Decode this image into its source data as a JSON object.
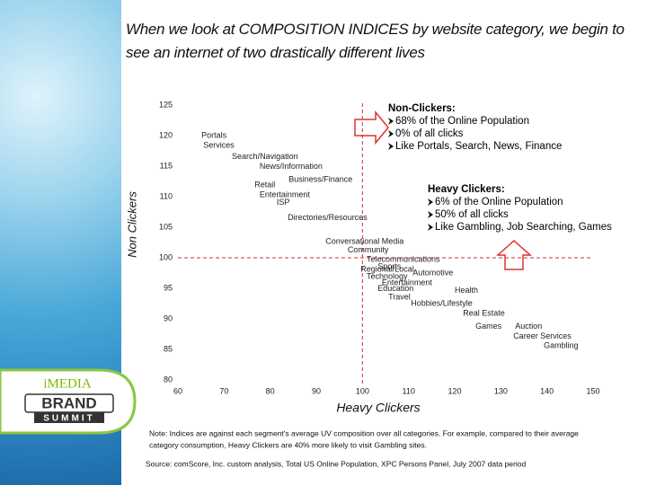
{
  "title": "When we look at COMPOSITION INDICES by website category, we begin to see an internet of two drastically different lives",
  "chart_data": {
    "type": "scatter",
    "x_label": "Heavy Clickers",
    "y_label": "Non Clickers",
    "xlim": [
      60,
      150
    ],
    "xticks": [
      60,
      70,
      80,
      90,
      100,
      110,
      120,
      130,
      140,
      150
    ],
    "ylim": [
      80,
      125
    ],
    "yticks": [
      80,
      85,
      90,
      95,
      100,
      105,
      110,
      115,
      120,
      125
    ],
    "reference_lines": {
      "x": 100,
      "y": 100
    },
    "labels": [
      "Portals",
      "Services",
      "Search/Navigation",
      "News/Information",
      "Business/Finance",
      "Retail",
      "Entertainment",
      "ISP",
      "Directories/Resources",
      "Conversational Media",
      "Community",
      "Telecommunications",
      "Sports",
      "Regional/Local",
      "Automotive",
      "Technology",
      "Entertainment",
      "Education",
      "Health",
      "Travel",
      "Hobbies/Lifestyle",
      "Real Estate",
      "Games",
      "Auction",
      "Career Services",
      "Gambling"
    ],
    "x": [
      65.1,
      65.5,
      71.7,
      77.7,
      84.0,
      76.6,
      77.7,
      81.4,
      83.8,
      92.0,
      96.8,
      100.9,
      103.3,
      99.6,
      110.9,
      100.9,
      104.2,
      103.3,
      120.0,
      105.6,
      110.5,
      121.8,
      124.5,
      133.1,
      132.7,
      139.3
    ],
    "values": [
      120.0,
      118.4,
      116.5,
      114.9,
      112.8,
      111.9,
      110.3,
      109.0,
      106.5,
      102.6,
      101.2,
      99.7,
      98.5,
      98.1,
      97.5,
      96.9,
      95.9,
      94.9,
      94.6,
      93.5,
      92.5,
      90.9,
      88.7,
      88.7,
      87.1,
      85.6
    ],
    "annotations": [
      {
        "title": "Non-Clickers:",
        "lines": [
          "68% of the Online Population",
          "0% of all clicks",
          "Like Portals, Search, News, Finance"
        ]
      },
      {
        "title": "Heavy Clickers:",
        "lines": [
          "6% of the Online Population",
          "50% of all clicks",
          "Like Gambling, Job Searching, Games"
        ]
      }
    ]
  },
  "note": [
    "Note:   Indices are against each segment's average UV composition over all categories.  For example, compared to their average",
    "category consumption, Heavy Clickers are 40% more likely to visit Gambling sites."
  ],
  "source": "Source:   comScore, Inc. custom analysis, Total US Online Population, XPC Persons Panel, July 2007 data period",
  "logo": {
    "top": "iMEDIA",
    "middle": "BRAND",
    "bottom": "SUMMIT"
  }
}
